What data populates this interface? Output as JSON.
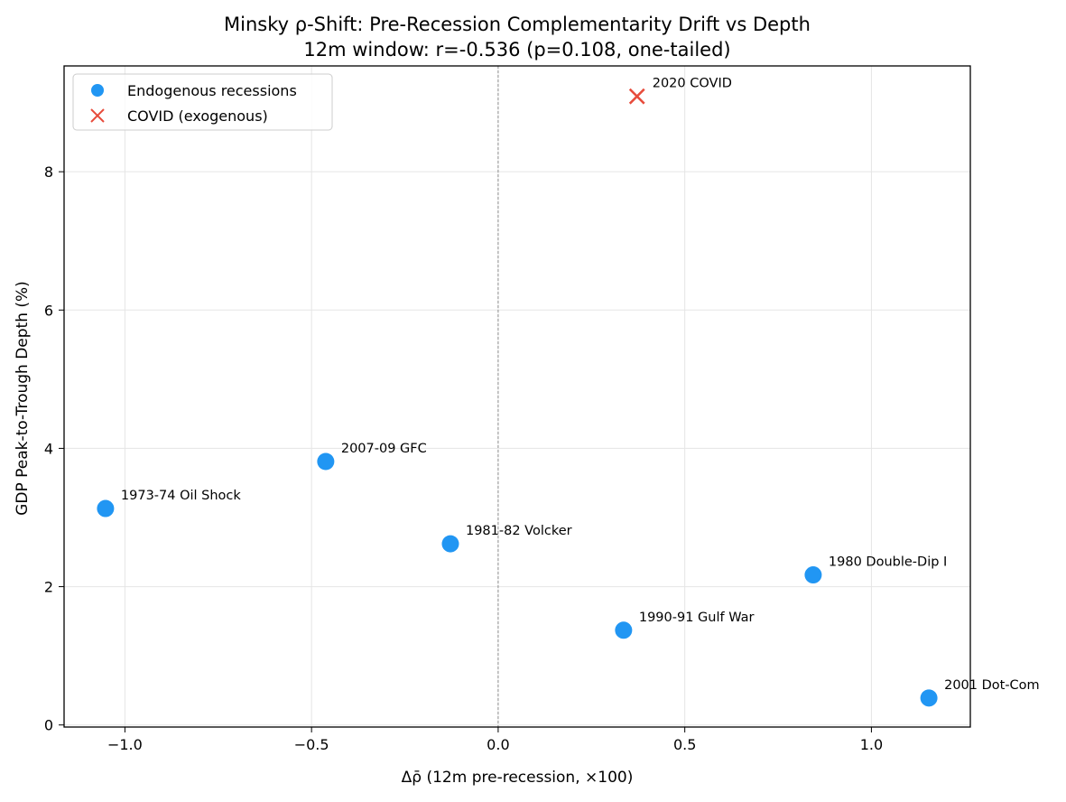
{
  "chart_data": {
    "type": "scatter",
    "title": "Minsky ρ-Shift: Pre-Recession Complementarity Drift vs Depth",
    "subtitle": "12m window: r=-0.536 (p=0.108, one-tailed)",
    "xlabel": "Δρ̄ (12m pre-recession, ×100)",
    "ylabel": "GDP Peak-to-Trough Depth (%)",
    "xlim": [
      -1.163,
      1.265
    ],
    "ylim": [
      -0.03,
      9.53
    ],
    "xticks": [
      -1.0,
      -0.5,
      0.0,
      0.5,
      1.0
    ],
    "xtick_labels": [
      "−1.0",
      "−0.5",
      "0.0",
      "0.5",
      "1.0"
    ],
    "yticks": [
      0,
      2,
      4,
      6,
      8
    ],
    "ytick_labels": [
      "0",
      "2",
      "4",
      "6",
      "8"
    ],
    "grid": true,
    "reference_line_x": 0.0,
    "legend_position": "top-left",
    "series": [
      {
        "name": "Endogenous recessions",
        "marker": "circle",
        "color": "#2196F3",
        "points": [
          {
            "label": "1973-74 Oil Shock",
            "x": -1.052,
            "y": 3.13
          },
          {
            "label": "2007-09 GFC",
            "x": -0.462,
            "y": 3.81
          },
          {
            "label": "1981-82 Volcker",
            "x": -0.128,
            "y": 2.62
          },
          {
            "label": "1990-91 Gulf War",
            "x": 0.336,
            "y": 1.37
          },
          {
            "label": "1980 Double-Dip I",
            "x": 0.844,
            "y": 2.17
          },
          {
            "label": "2001 Dot-Com",
            "x": 1.154,
            "y": 0.39
          }
        ]
      },
      {
        "name": "COVID (exogenous)",
        "marker": "x",
        "color": "#E74C3C",
        "points": [
          {
            "label": "2020 COVID",
            "x": 0.372,
            "y": 9.09
          }
        ]
      }
    ]
  }
}
